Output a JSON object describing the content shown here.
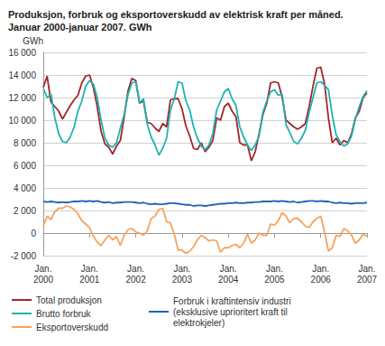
{
  "chart_data": {
    "type": "line",
    "title": "Produksjon, forbruk og eksportoverskudd av elektrisk kraft per måned. Januar 2000-januar 2007. GWh",
    "y_label": "GWh",
    "categories": [
      "Jan.\n2000",
      null,
      null,
      null,
      null,
      null,
      null,
      null,
      null,
      null,
      null,
      null,
      "Jan.\n2001",
      null,
      null,
      null,
      null,
      null,
      null,
      null,
      null,
      null,
      null,
      null,
      "Jan.\n2002",
      null,
      null,
      null,
      null,
      null,
      null,
      null,
      null,
      null,
      null,
      null,
      "Jan.\n2003",
      null,
      null,
      null,
      null,
      null,
      null,
      null,
      null,
      null,
      null,
      null,
      "Jan.\n2004",
      null,
      null,
      null,
      null,
      null,
      null,
      null,
      null,
      null,
      null,
      null,
      "Jan.\n2005",
      null,
      null,
      null,
      null,
      null,
      null,
      null,
      null,
      null,
      null,
      null,
      "Jan.\n2006",
      null,
      null,
      null,
      null,
      null,
      null,
      null,
      null,
      null,
      null,
      null,
      "Jan.\n2007"
    ],
    "ylim": [
      -2000,
      16000
    ],
    "yticks": [
      {
        "value": -2000,
        "label": "-2 000"
      },
      0,
      {
        "value": 2000,
        "label": "2 000"
      },
      {
        "value": 4000,
        "label": "4 000"
      },
      {
        "value": 6000,
        "label": "6 000"
      },
      {
        "value": 8000,
        "label": "8 000"
      },
      {
        "value": 10000,
        "label": "10 000"
      },
      {
        "value": 12000,
        "label": "12 000"
      },
      {
        "value": 14000,
        "label": "14 000"
      },
      {
        "value": 16000,
        "label": "16 000"
      }
    ],
    "grid": true,
    "legend": "bottom",
    "series": [
      {
        "name": "Total produksjon",
        "color": "#a3262a",
        "values": [
          12900,
          13900,
          11600,
          11200,
          10800,
          10100,
          10700,
          11300,
          11800,
          12200,
          13300,
          13900,
          14000,
          12900,
          11200,
          9000,
          7900,
          7600,
          7000,
          7700,
          8200,
          10300,
          12600,
          13700,
          13500,
          11500,
          11700,
          9800,
          9700,
          9300,
          9000,
          9700,
          9400,
          11800,
          11900,
          11900,
          11000,
          9500,
          8600,
          7500,
          7400,
          8000,
          7200,
          7600,
          8200,
          10200,
          10000,
          11200,
          11500,
          10800,
          10300,
          8000,
          7800,
          7800,
          6400,
          7200,
          8800,
          10500,
          11500,
          13300,
          13400,
          13300,
          12000,
          10000,
          9700,
          9400,
          9200,
          9400,
          9700,
          11200,
          13000,
          14600,
          14700,
          13200,
          10200,
          8000,
          8400,
          7800,
          8200,
          8000,
          8800,
          10200,
          10800,
          12000,
          12400
        ]
      },
      {
        "name": "Brutto forbruk",
        "color": "#1fb3b3",
        "values": [
          12800,
          12000,
          12300,
          10200,
          8800,
          8100,
          8000,
          8500,
          9400,
          10800,
          11700,
          13000,
          13500,
          13200,
          12000,
          10000,
          8400,
          7800,
          7600,
          8000,
          9300,
          10500,
          12300,
          13300,
          13400,
          11500,
          11900,
          9600,
          8500,
          7800,
          6900,
          7500,
          8400,
          10900,
          11900,
          13400,
          13300,
          11700,
          10900,
          9400,
          8400,
          7700,
          7400,
          7800,
          8800,
          10900,
          11700,
          12500,
          12800,
          11900,
          11300,
          9400,
          8500,
          7800,
          7300,
          7800,
          8600,
          10700,
          11700,
          12500,
          12700,
          12200,
          12300,
          9600,
          8900,
          8100,
          7900,
          8400,
          9100,
          10700,
          12000,
          13300,
          13400,
          13100,
          12700,
          10400,
          8700,
          8100,
          7700,
          7900,
          8600,
          10100,
          11200,
          12100,
          12600
        ]
      },
      {
        "name": "Eksportoverskudd",
        "color": "#f7a35c",
        "values": [
          600,
          1500,
          1200,
          1900,
          2200,
          2200,
          2400,
          2300,
          2100,
          1700,
          1100,
          800,
          500,
          -300,
          -800,
          -1100,
          -600,
          -200,
          -600,
          -300,
          -1100,
          -200,
          300,
          400,
          100,
          0,
          -200,
          200,
          1300,
          1500,
          2100,
          2200,
          1000,
          900,
          -100,
          -1500,
          -1500,
          -1800,
          -1600,
          -1200,
          -600,
          -200,
          -400,
          -700,
          -600,
          -700,
          -1700,
          -1300,
          -1300,
          -1100,
          -1000,
          -1300,
          -900,
          -100,
          -900,
          -600,
          0,
          -200,
          -200,
          800,
          700,
          1100,
          1800,
          1500,
          900,
          1300,
          1300,
          1000,
          600,
          500,
          1000,
          1300,
          1500,
          100,
          -1600,
          -1300,
          -200,
          -300,
          400,
          200,
          -200,
          -900,
          -600,
          -100,
          -300
        ]
      },
      {
        "name": "Forbruk i kraftintensiv industri (eksklusive uprioritert kraft til elektrokjeler)",
        "color": "#1f63b5",
        "values": [
          2800,
          2750,
          2800,
          2750,
          2700,
          2750,
          2700,
          2750,
          2800,
          2800,
          2850,
          2800,
          2850,
          2800,
          2850,
          2750,
          2700,
          2750,
          2650,
          2700,
          2700,
          2750,
          2750,
          2750,
          2700,
          2650,
          2700,
          2600,
          2550,
          2600,
          2550,
          2550,
          2600,
          2650,
          2650,
          2600,
          2550,
          2500,
          2500,
          2400,
          2450,
          2450,
          2400,
          2450,
          2500,
          2550,
          2600,
          2600,
          2650,
          2650,
          2700,
          2650,
          2650,
          2700,
          2700,
          2750,
          2750,
          2800,
          2800,
          2800,
          2850,
          2800,
          2850,
          2800,
          2750,
          2800,
          2700,
          2750,
          2800,
          2850,
          2850,
          2800,
          2850,
          2800,
          2800,
          2700,
          2650,
          2700,
          2650,
          2650,
          2600,
          2650,
          2650,
          2650,
          2700
        ]
      }
    ]
  }
}
